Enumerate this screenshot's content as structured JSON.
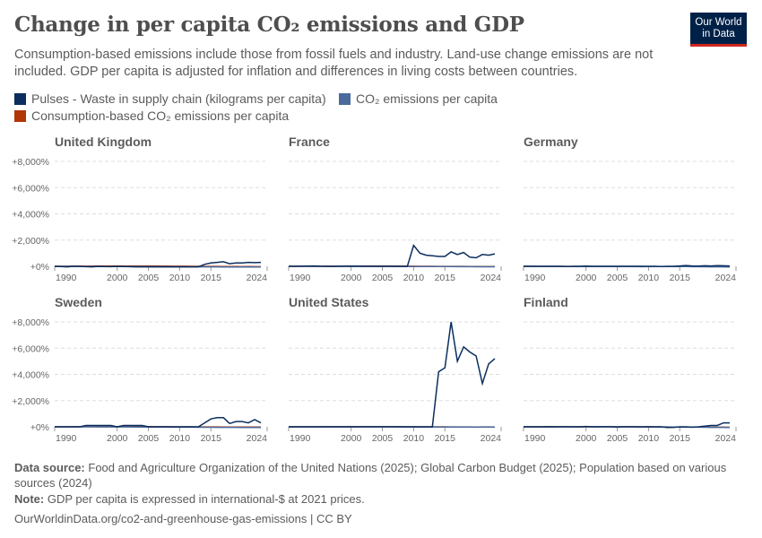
{
  "header": {
    "title": "Change in per capita CO₂ emissions and GDP",
    "subtitle": "Consumption-based emissions include those from fossil fuels and industry. Land-use change emissions are not included. GDP per capita is adjusted for inflation and differences in living costs between countries.",
    "logo": "Our World in Data"
  },
  "footer": {
    "source_label": "Data source:",
    "source": "Food and Agriculture Organization of the United Nations (2025); Global Carbon Budget (2025); Population based on various sources (2024)",
    "note_label": "Note:",
    "note": "GDP per capita is expressed in international-$ at 2021 prices.",
    "url": "OurWorldinData.org/co2-and-greenhouse-gas-emissions | CC BY"
  },
  "chart_data": {
    "type": "line",
    "ylim": [
      0,
      8000
    ],
    "yticks": [
      "+0%",
      "+2,000%",
      "+4,000%",
      "+6,000%",
      "+8,000%"
    ],
    "ytick_values": [
      0,
      2000,
      4000,
      6000,
      8000
    ],
    "xlim": [
      1990,
      2024
    ],
    "xticks": [
      1990,
      2000,
      2005,
      2010,
      2015,
      2024
    ],
    "grid": "horizontal dashed",
    "legend_placement": "top",
    "series_meta": [
      {
        "name": "Pulses - Waste in supply chain (kilograms per capita)",
        "color": "#0b2e5e"
      },
      {
        "name": "CO₂ emissions per capita",
        "color": "#4a6a9c"
      },
      {
        "name": "Consumption-based CO₂ emissions per capita",
        "color": "#b13507"
      }
    ],
    "years": [
      1990,
      1991,
      1992,
      1993,
      1994,
      1995,
      1996,
      1997,
      1998,
      1999,
      2000,
      2001,
      2002,
      2003,
      2004,
      2005,
      2006,
      2007,
      2008,
      2009,
      2010,
      2011,
      2012,
      2013,
      2014,
      2015,
      2016,
      2017,
      2018,
      2019,
      2020,
      2021,
      2022,
      2023,
      2024
    ],
    "panels": [
      {
        "name": "United Kingdom",
        "pulses": [
          0,
          -20,
          -40,
          0,
          0,
          -30,
          -40,
          0,
          -20,
          -30,
          0,
          -20,
          -30,
          -40,
          -40,
          -40,
          -40,
          -40,
          -40,
          -40,
          -40,
          -40,
          -40,
          -40,
          150,
          250,
          300,
          350,
          200,
          250,
          250,
          300,
          280,
          300,
          null
        ],
        "co2": [
          0,
          -5,
          -8,
          -10,
          -12,
          -12,
          -10,
          -12,
          -14,
          -16,
          -15,
          -16,
          -18,
          -18,
          -20,
          -22,
          -24,
          -26,
          -28,
          -32,
          -30,
          -35,
          -33,
          -36,
          -40,
          -42,
          -44,
          -46,
          -48,
          -50,
          -55,
          -52,
          -54,
          -56,
          null
        ],
        "consumption": [
          0,
          2,
          4,
          6,
          8,
          10,
          12,
          14,
          16,
          18,
          20,
          22,
          22,
          24,
          26,
          25,
          24,
          22,
          20,
          10,
          10,
          5,
          3,
          0,
          -5,
          -8,
          -10,
          -12,
          -15,
          -18,
          -25,
          -22,
          -25,
          -28,
          null
        ]
      },
      {
        "name": "France",
        "pulses": [
          0,
          0,
          10,
          20,
          30,
          10,
          0,
          -10,
          0,
          10,
          20,
          10,
          0,
          0,
          0,
          10,
          0,
          0,
          0,
          0,
          1600,
          1000,
          850,
          800,
          750,
          750,
          1100,
          900,
          1050,
          700,
          650,
          900,
          850,
          950,
          null
        ],
        "co2": [
          0,
          2,
          0,
          -3,
          -5,
          -4,
          -2,
          -4,
          -2,
          -3,
          -5,
          -5,
          -6,
          -6,
          -7,
          -8,
          -10,
          -12,
          -13,
          -16,
          -15,
          -18,
          -18,
          -19,
          -22,
          -22,
          -23,
          -24,
          -27,
          -28,
          -33,
          -30,
          -33,
          -36,
          null
        ],
        "consumption": [
          0,
          2,
          1,
          0,
          0,
          2,
          4,
          5,
          7,
          9,
          10,
          12,
          12,
          13,
          15,
          15,
          14,
          12,
          10,
          4,
          5,
          2,
          0,
          -2,
          -5,
          -6,
          -7,
          -8,
          -10,
          -12,
          -18,
          -14,
          -18,
          -20,
          null
        ]
      },
      {
        "name": "Germany",
        "pulses": [
          0,
          0,
          0,
          0,
          0,
          0,
          0,
          -20,
          0,
          0,
          20,
          0,
          0,
          0,
          0,
          0,
          0,
          0,
          0,
          0,
          0,
          0,
          -20,
          0,
          0,
          30,
          60,
          30,
          20,
          40,
          30,
          50,
          40,
          30,
          null
        ],
        "co2": [
          0,
          -3,
          -6,
          -8,
          -9,
          -10,
          -9,
          -11,
          -12,
          -13,
          -14,
          -13,
          -15,
          -15,
          -16,
          -18,
          -17,
          -19,
          -18,
          -24,
          -20,
          -22,
          -21,
          -20,
          -23,
          -23,
          -22,
          -24,
          -27,
          -32,
          -36,
          -33,
          -38,
          -43,
          null
        ],
        "consumption": [
          0,
          -2,
          -4,
          -5,
          -6,
          -6,
          -5,
          -6,
          -6,
          -7,
          -8,
          -7,
          -9,
          -9,
          -9,
          -10,
          -9,
          -10,
          -10,
          -15,
          -12,
          -14,
          -13,
          -12,
          -15,
          -15,
          -14,
          -16,
          -18,
          -22,
          -26,
          -24,
          -28,
          -32,
          null
        ]
      },
      {
        "name": "Sweden",
        "pulses": [
          0,
          0,
          0,
          0,
          0,
          100,
          100,
          100,
          100,
          100,
          0,
          100,
          100,
          100,
          100,
          0,
          0,
          0,
          0,
          0,
          0,
          0,
          0,
          0,
          300,
          600,
          700,
          700,
          250,
          400,
          400,
          300,
          550,
          300,
          null
        ],
        "co2": [
          0,
          -2,
          -3,
          -2,
          0,
          -1,
          -2,
          -5,
          -6,
          -8,
          -10,
          -10,
          -10,
          -12,
          -14,
          -16,
          -18,
          -20,
          -22,
          -26,
          -24,
          -28,
          -30,
          -32,
          -34,
          -36,
          -38,
          -38,
          -40,
          -42,
          -46,
          -44,
          -46,
          -48,
          null
        ],
        "consumption": [
          0,
          2,
          3,
          5,
          6,
          7,
          8,
          9,
          10,
          10,
          10,
          11,
          12,
          12,
          12,
          12,
          10,
          8,
          6,
          0,
          2,
          0,
          -2,
          -4,
          -6,
          -8,
          -10,
          -12,
          -14,
          -16,
          -22,
          -18,
          -20,
          -22,
          null
        ]
      },
      {
        "name": "United States",
        "pulses": [
          0,
          0,
          0,
          0,
          0,
          0,
          0,
          0,
          0,
          0,
          0,
          0,
          0,
          0,
          0,
          0,
          0,
          0,
          0,
          0,
          0,
          0,
          0,
          0,
          4200,
          4500,
          8000,
          5000,
          6100,
          5700,
          5400,
          3300,
          4800,
          5200,
          null
        ],
        "co2": [
          0,
          -2,
          -1,
          0,
          0,
          0,
          1,
          2,
          1,
          1,
          3,
          1,
          0,
          0,
          1,
          0,
          -3,
          -2,
          -6,
          -13,
          -9,
          -12,
          -15,
          -13,
          -13,
          -16,
          -18,
          -19,
          -17,
          -19,
          -28,
          -23,
          -23,
          -26,
          null
        ],
        "consumption": [
          0,
          -1,
          0,
          1,
          2,
          3,
          5,
          6,
          8,
          9,
          11,
          10,
          11,
          12,
          13,
          14,
          12,
          12,
          8,
          0,
          3,
          1,
          -2,
          -1,
          -1,
          -3,
          -5,
          -6,
          -4,
          -6,
          -14,
          -9,
          -10,
          -12,
          null
        ]
      },
      {
        "name": "Finland",
        "pulses": [
          0,
          0,
          0,
          0,
          10,
          0,
          0,
          0,
          0,
          0,
          30,
          0,
          0,
          0,
          0,
          -20,
          0,
          0,
          0,
          0,
          0,
          0,
          0,
          -50,
          -40,
          0,
          0,
          -30,
          0,
          50,
          100,
          100,
          300,
          300,
          null
        ],
        "co2": [
          0,
          -3,
          -5,
          0,
          8,
          3,
          12,
          8,
          3,
          0,
          -3,
          4,
          8,
          18,
          13,
          -3,
          10,
          8,
          0,
          -8,
          4,
          -10,
          -15,
          -15,
          -20,
          -26,
          -23,
          -28,
          -26,
          -32,
          -38,
          -36,
          -42,
          -48,
          null
        ],
        "consumption": [
          0,
          -2,
          -3,
          0,
          5,
          2,
          8,
          5,
          2,
          0,
          -2,
          2,
          5,
          10,
          8,
          -2,
          6,
          5,
          0,
          -6,
          2,
          -6,
          -10,
          -10,
          -14,
          -18,
          -16,
          -20,
          -18,
          -22,
          -28,
          -26,
          -30,
          -34,
          null
        ]
      }
    ]
  }
}
